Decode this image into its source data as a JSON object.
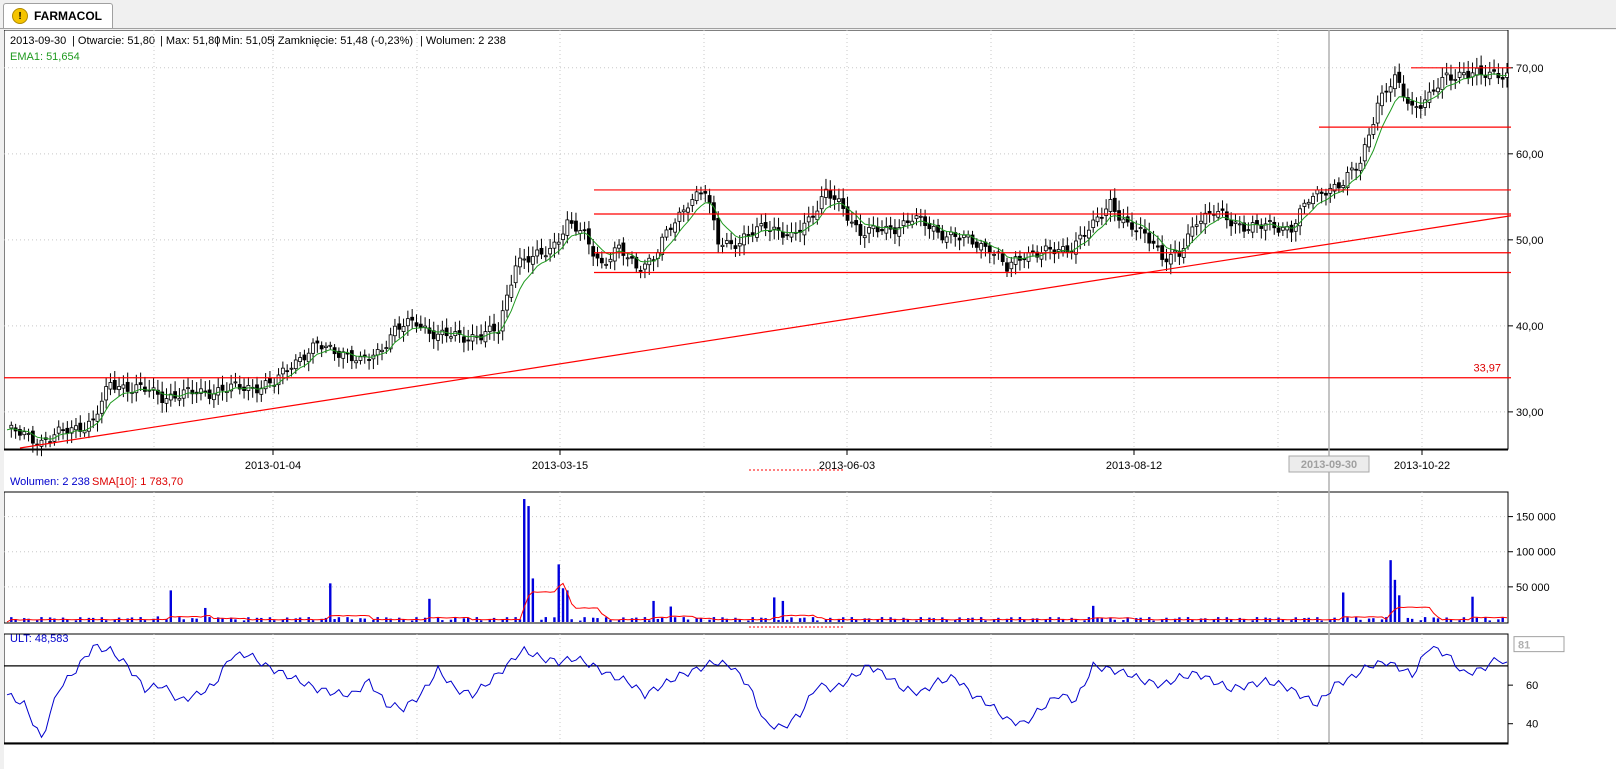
{
  "tab": {
    "title": "FARMACOL",
    "icon": "warning-icon"
  },
  "info": {
    "date": "2013-09-30",
    "open": "| Otwarcie: 51,80",
    "high": "| Max: 51,80",
    "low": "| Min: 51,05",
    "close": "| Zamknięcie: 51,48 (-0,23%)",
    "volume": "| Wolumen: 2 238",
    "ema": "EMA1: 51,654",
    "vol_label": "Wolumen: 2 238",
    "sma_label": "SMA[10]: 1 783,70",
    "ult_label": "ULT: 48,583"
  },
  "colors": {
    "up": "#ffffff",
    "down": "#000000",
    "ema": "#1f9a1f",
    "lines": "#ff0000",
    "volume": "#0000dd",
    "ult": "#0000cc",
    "cursor": "#b0b0b0"
  },
  "chart_data": [
    {
      "type": "candlestick",
      "title": "",
      "x_ticks": [
        "2013-01-04",
        "2013-03-15",
        "2013-06-03",
        "2013-08-12",
        "2013-10-22"
      ],
      "cursor_date": "2013-09-30",
      "y_ticks": [
        "30,00",
        "40,00",
        "50,00",
        "60,00",
        "70,00"
      ],
      "ylim": [
        25.8,
        73
      ],
      "series_name": "EMA1",
      "price_path": [
        [
          0,
          27.9
        ],
        [
          8,
          26.6
        ],
        [
          14,
          27.8
        ],
        [
          20,
          28.9
        ],
        [
          24,
          33.2
        ],
        [
          30,
          32.8
        ],
        [
          36,
          31.8
        ],
        [
          44,
          32.2
        ],
        [
          54,
          32.8
        ],
        [
          62,
          33.2
        ],
        [
          66,
          35.7
        ],
        [
          72,
          37.6
        ],
        [
          78,
          37.0
        ],
        [
          82,
          35.6
        ],
        [
          86,
          37.0
        ],
        [
          90,
          39.5
        ],
        [
          95,
          40.5
        ],
        [
          100,
          38.8
        ],
        [
          110,
          38.8
        ],
        [
          114,
          39.5
        ],
        [
          116,
          43.5
        ],
        [
          118,
          47.5
        ],
        [
          122,
          47.7
        ],
        [
          126,
          49.0
        ],
        [
          130,
          51.8
        ],
        [
          134,
          50.5
        ],
        [
          138,
          47.2
        ],
        [
          142,
          48.8
        ],
        [
          146,
          47.0
        ],
        [
          150,
          47.7
        ],
        [
          154,
          51.5
        ],
        [
          158,
          54.5
        ],
        [
          162,
          55.5
        ],
        [
          165,
          50.0
        ],
        [
          170,
          49.5
        ],
        [
          176,
          52.0
        ],
        [
          182,
          50.0
        ],
        [
          186,
          52.5
        ],
        [
          190,
          55.5
        ],
        [
          194,
          53.5
        ],
        [
          198,
          51.0
        ],
        [
          204,
          51.0
        ],
        [
          210,
          52.5
        ],
        [
          216,
          51.0
        ],
        [
          222,
          50.0
        ],
        [
          228,
          49.2
        ],
        [
          232,
          46.5
        ],
        [
          236,
          48.5
        ],
        [
          242,
          48.5
        ],
        [
          246,
          49.0
        ],
        [
          252,
          51.5
        ],
        [
          256,
          54.5
        ],
        [
          260,
          51.5
        ],
        [
          266,
          50.0
        ],
        [
          268,
          48.0
        ],
        [
          272,
          48.0
        ],
        [
          276,
          52.5
        ],
        [
          280,
          53.2
        ],
        [
          284,
          52.0
        ],
        [
          290,
          51.5
        ],
        [
          294,
          51.5
        ],
        [
          298,
          51.5
        ],
        [
          302,
          54.5
        ],
        [
          306,
          56.0
        ],
        [
          310,
          56.5
        ],
        [
          314,
          59.0
        ],
        [
          318,
          66.0
        ],
        [
          322,
          68.5
        ],
        [
          326,
          65.5
        ],
        [
          330,
          66.5
        ],
        [
          334,
          69.0
        ],
        [
          338,
          69.5
        ],
        [
          342,
          69.0
        ],
        [
          346,
          69.5
        ],
        [
          348,
          69.2
        ]
      ],
      "horizontal_lines": [
        33.97,
        46.2,
        48.5,
        53.0,
        55.8,
        63.1,
        70.0
      ],
      "trendline": [
        [
          3,
          25.8
        ],
        [
          348,
          52.8
        ]
      ],
      "annotation": "33,97"
    },
    {
      "type": "bar",
      "series": [
        {
          "name": "Wolumen"
        },
        {
          "name": "SMA[10]"
        }
      ],
      "y_ticks": [
        "50 000",
        "100 000",
        "150 000"
      ],
      "ylim": [
        0,
        185000
      ],
      "spikes": [
        [
          35,
          8000
        ],
        [
          38,
          45000
        ],
        [
          46,
          20000
        ],
        [
          75,
          55000
        ],
        [
          98,
          33000
        ],
        [
          120,
          175000
        ],
        [
          121,
          165000
        ],
        [
          122,
          62000
        ],
        [
          128,
          82000
        ],
        [
          129,
          48000
        ],
        [
          130,
          45000
        ],
        [
          150,
          30000
        ],
        [
          154,
          22000
        ],
        [
          178,
          35000
        ],
        [
          180,
          30000
        ],
        [
          252,
          23000
        ],
        [
          310,
          42000
        ],
        [
          321,
          88000
        ],
        [
          322,
          60000
        ],
        [
          323,
          38000
        ],
        [
          340,
          36000
        ]
      ],
      "typical_volume": 5000
    },
    {
      "type": "line",
      "series": [
        {
          "name": "ULT"
        }
      ],
      "y_ticks": [
        "40",
        "60"
      ],
      "highlighted_tick": "81",
      "ylim": [
        30,
        86
      ],
      "levels": [
        70,
        30
      ],
      "path": [
        [
          0,
          55
        ],
        [
          4,
          50
        ],
        [
          8,
          32
        ],
        [
          12,
          58
        ],
        [
          16,
          68
        ],
        [
          20,
          80
        ],
        [
          24,
          78
        ],
        [
          28,
          70
        ],
        [
          32,
          58
        ],
        [
          36,
          60
        ],
        [
          40,
          52
        ],
        [
          44,
          55
        ],
        [
          48,
          60
        ],
        [
          52,
          75
        ],
        [
          56,
          76
        ],
        [
          60,
          70
        ],
        [
          64,
          66
        ],
        [
          68,
          62
        ],
        [
          72,
          58
        ],
        [
          76,
          56
        ],
        [
          80,
          55
        ],
        [
          84,
          62
        ],
        [
          88,
          50
        ],
        [
          92,
          48
        ],
        [
          96,
          55
        ],
        [
          100,
          68
        ],
        [
          104,
          58
        ],
        [
          108,
          55
        ],
        [
          112,
          62
        ],
        [
          116,
          70
        ],
        [
          118,
          75
        ],
        [
          120,
          78
        ],
        [
          124,
          74
        ],
        [
          128,
          72
        ],
        [
          132,
          74
        ],
        [
          136,
          70
        ],
        [
          140,
          65
        ],
        [
          144,
          62
        ],
        [
          148,
          55
        ],
        [
          152,
          60
        ],
        [
          156,
          65
        ],
        [
          160,
          68
        ],
        [
          164,
          72
        ],
        [
          168,
          70
        ],
        [
          172,
          60
        ],
        [
          176,
          40
        ],
        [
          180,
          38
        ],
        [
          184,
          45
        ],
        [
          188,
          60
        ],
        [
          192,
          58
        ],
        [
          196,
          64
        ],
        [
          200,
          70
        ],
        [
          204,
          65
        ],
        [
          208,
          58
        ],
        [
          212,
          56
        ],
        [
          216,
          62
        ],
        [
          220,
          64
        ],
        [
          224,
          55
        ],
        [
          228,
          50
        ],
        [
          232,
          42
        ],
        [
          236,
          40
        ],
        [
          240,
          48
        ],
        [
          244,
          55
        ],
        [
          248,
          52
        ],
        [
          252,
          70
        ],
        [
          256,
          68
        ],
        [
          260,
          66
        ],
        [
          264,
          62
        ],
        [
          268,
          60
        ],
        [
          272,
          64
        ],
        [
          276,
          66
        ],
        [
          280,
          62
        ],
        [
          284,
          58
        ],
        [
          288,
          60
        ],
        [
          292,
          62
        ],
        [
          296,
          60
        ],
        [
          300,
          55
        ],
        [
          304,
          50
        ],
        [
          308,
          60
        ],
        [
          312,
          64
        ],
        [
          316,
          70
        ],
        [
          320,
          72
        ],
        [
          324,
          68
        ],
        [
          326,
          65
        ],
        [
          330,
          80
        ],
        [
          334,
          76
        ],
        [
          338,
          66
        ],
        [
          342,
          68
        ],
        [
          346,
          74
        ],
        [
          348,
          70
        ]
      ]
    }
  ]
}
